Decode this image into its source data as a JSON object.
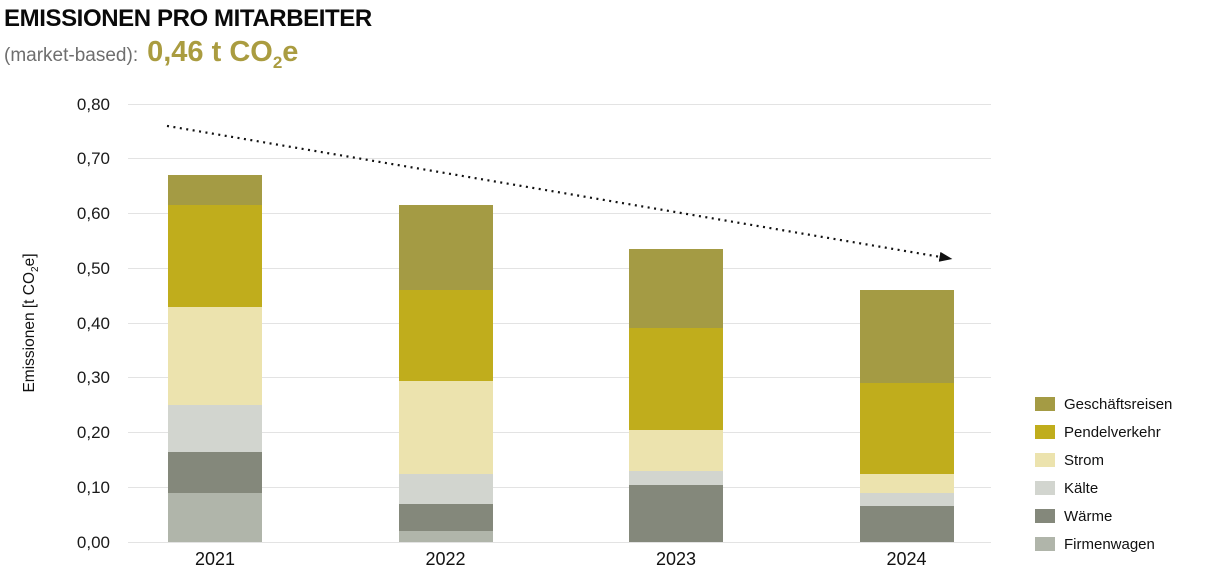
{
  "header": {
    "title": "EMISSIONEN PRO MITARBEITER",
    "subtitle_prefix": "(market-based):",
    "headline": {
      "pre": "0,46 t CO",
      "sub": "2",
      "post": "e"
    }
  },
  "y_axis": {
    "label": {
      "pre": "Emissionen [t CO",
      "sub": "2",
      "post": "e]"
    }
  },
  "colors": {
    "headline": "#aa9c40",
    "title_text": "#0a0a0a",
    "subtitle_text": "#6e6e6e",
    "gridline": "#e3e3e3",
    "trend_line": "#111111"
  },
  "chart_data": {
    "type": "bar",
    "stacked": true,
    "title": "EMISSIONEN PRO MITARBEITER",
    "categories": [
      "2021",
      "2022",
      "2023",
      "2024"
    ],
    "series": [
      {
        "name": "Firmenwagen",
        "color": "#b0b5aa",
        "values": [
          0.09,
          0.02,
          0,
          0
        ]
      },
      {
        "name": "Wärme",
        "color": "#84887b",
        "values": [
          0.075,
          0.05,
          0.105,
          0.065
        ]
      },
      {
        "name": "Kälte",
        "color": "#d2d5cf",
        "values": [
          0.085,
          0.055,
          0.025,
          0.025
        ]
      },
      {
        "name": "Strom",
        "color": "#ece3ae",
        "values": [
          0.18,
          0.17,
          0.075,
          0.035
        ]
      },
      {
        "name": "Pendelverkehr",
        "color": "#c0ad1c",
        "values": [
          0.185,
          0.165,
          0.185,
          0.165
        ]
      },
      {
        "name": "Geschäftsreisen",
        "color": "#a49b44",
        "values": [
          0.055,
          0.155,
          0.145,
          0.17
        ]
      }
    ],
    "totals": [
      0.67,
      0.615,
      0.535,
      0.46
    ],
    "ylabel": "Emissionen [t CO2e]",
    "ylim": [
      0,
      0.8
    ],
    "ytick_step": 0.1,
    "yticks": [
      "0,00",
      "0,10",
      "0,20",
      "0,30",
      "0,40",
      "0,50",
      "0,60",
      "0,70",
      "0,80"
    ],
    "grid": true,
    "legend_position": "right",
    "legend_order_top_to_bottom": [
      "Geschäftsreisen",
      "Pendelverkehr",
      "Strom",
      "Kälte",
      "Wärme",
      "Firmenwagen"
    ],
    "trend_arrow": {
      "start_value": 0.76,
      "end_value": 0.52,
      "style": "dotted"
    }
  }
}
